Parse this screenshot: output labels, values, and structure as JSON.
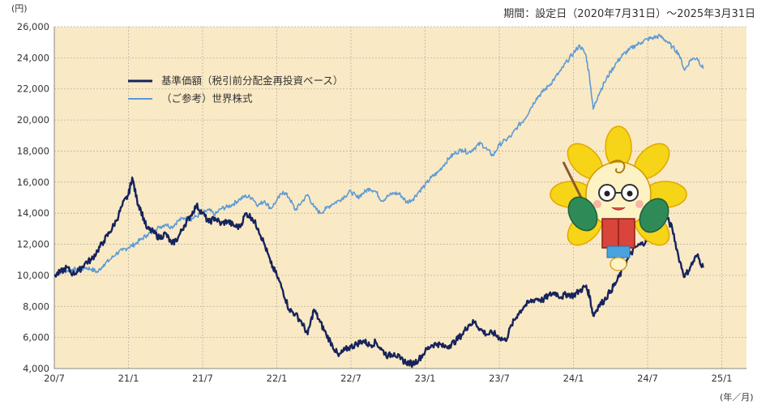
{
  "period_label": "期間：設定日（2020年7月31日）～2025年3月31日",
  "chart_data": {
    "type": "line",
    "y_unit": "(円)",
    "x_unit": "(年／月)",
    "ylim": [
      4000,
      26000
    ],
    "y_ticks": [
      "4,000",
      "6,000",
      "8,000",
      "10,000",
      "12,000",
      "14,000",
      "16,000",
      "18,000",
      "20,000",
      "22,000",
      "24,000",
      "26,000"
    ],
    "x_ticks": [
      "20/7",
      "21/1",
      "21/7",
      "22/1",
      "22/7",
      "23/1",
      "23/7",
      "24/1",
      "24/7",
      "25/1"
    ],
    "x_range_months": 56,
    "grid": true,
    "legend_position": "top-left",
    "series": [
      {
        "name": "基準価額（税引前分配金再投資ベース）",
        "color": "#16245c",
        "points": [
          [
            0,
            10000
          ],
          [
            0.5,
            10200
          ],
          [
            1,
            10500
          ],
          [
            1.5,
            10100
          ],
          [
            2,
            10300
          ],
          [
            2.5,
            10800
          ],
          [
            3,
            11000
          ],
          [
            3.5,
            11600
          ],
          [
            4,
            12200
          ],
          [
            4.5,
            12800
          ],
          [
            5,
            13500
          ],
          [
            5.5,
            14500
          ],
          [
            6,
            15200
          ],
          [
            6.3,
            16300
          ],
          [
            6.7,
            14800
          ],
          [
            7,
            14200
          ],
          [
            7.5,
            13000
          ],
          [
            8,
            12800
          ],
          [
            8.5,
            12400
          ],
          [
            9,
            12700
          ],
          [
            9.5,
            12000
          ],
          [
            10,
            12400
          ],
          [
            10.5,
            13200
          ],
          [
            11,
            13800
          ],
          [
            11.5,
            14500
          ],
          [
            12,
            14000
          ],
          [
            12.5,
            13400
          ],
          [
            13,
            13700
          ],
          [
            13.5,
            13300
          ],
          [
            14,
            13500
          ],
          [
            14.5,
            13200
          ],
          [
            15,
            13100
          ],
          [
            15.5,
            14000
          ],
          [
            16,
            13700
          ],
          [
            16.5,
            13000
          ],
          [
            17,
            12000
          ],
          [
            17.5,
            10800
          ],
          [
            18,
            10000
          ],
          [
            18.5,
            9000
          ],
          [
            19,
            7800
          ],
          [
            19.5,
            7500
          ],
          [
            20,
            7000
          ],
          [
            20.5,
            6200
          ],
          [
            21,
            7800
          ],
          [
            21.5,
            7000
          ],
          [
            22,
            6200
          ],
          [
            22.5,
            5500
          ],
          [
            23,
            4800
          ],
          [
            23.5,
            5200
          ],
          [
            24,
            5400
          ],
          [
            24.5,
            5600
          ],
          [
            25,
            5800
          ],
          [
            25.5,
            5500
          ],
          [
            26,
            5700
          ],
          [
            26.5,
            5200
          ],
          [
            27,
            4800
          ],
          [
            27.5,
            5000
          ],
          [
            28,
            4600
          ],
          [
            28.5,
            4400
          ],
          [
            29,
            4300
          ],
          [
            29.5,
            4600
          ],
          [
            30,
            5100
          ],
          [
            30.5,
            5500
          ],
          [
            31,
            5600
          ],
          [
            31.5,
            5400
          ],
          [
            32,
            5500
          ],
          [
            32.5,
            5800
          ],
          [
            33,
            6200
          ],
          [
            33.5,
            6800
          ],
          [
            34,
            7000
          ],
          [
            34.5,
            6500
          ],
          [
            35,
            6200
          ],
          [
            35.5,
            6300
          ],
          [
            36,
            6000
          ],
          [
            36.5,
            5800
          ],
          [
            37,
            6800
          ],
          [
            37.5,
            7500
          ],
          [
            38,
            8000
          ],
          [
            38.5,
            8300
          ],
          [
            39,
            8500
          ],
          [
            39.5,
            8400
          ],
          [
            40,
            8700
          ],
          [
            40.5,
            8900
          ],
          [
            41,
            8600
          ],
          [
            41.5,
            8800
          ],
          [
            42,
            8700
          ],
          [
            42.5,
            9000
          ],
          [
            43,
            9300
          ],
          [
            43.3,
            8700
          ],
          [
            43.6,
            7400
          ],
          [
            44,
            8000
          ],
          [
            44.5,
            8400
          ],
          [
            45,
            9000
          ],
          [
            45.5,
            9600
          ],
          [
            46,
            10400
          ],
          [
            46.5,
            11200
          ],
          [
            47,
            11800
          ],
          [
            47.5,
            12000
          ],
          [
            48,
            12300
          ],
          [
            48.5,
            12700
          ],
          [
            49,
            13300
          ],
          [
            49.5,
            13800
          ],
          [
            50,
            13000
          ],
          [
            50.5,
            11200
          ],
          [
            51,
            9900
          ],
          [
            51.5,
            10600
          ],
          [
            52,
            11300
          ],
          [
            52.5,
            10500
          ]
        ]
      },
      {
        "name": "（ご参考）世界株式",
        "color": "#5b9bd5",
        "points": [
          [
            0,
            10000
          ],
          [
            0.5,
            10200
          ],
          [
            1,
            10300
          ],
          [
            1.5,
            10400
          ],
          [
            2,
            10300
          ],
          [
            2.5,
            10500
          ],
          [
            3,
            10400
          ],
          [
            3.5,
            10200
          ],
          [
            4,
            10700
          ],
          [
            4.5,
            11000
          ],
          [
            5,
            11400
          ],
          [
            5.5,
            11600
          ],
          [
            6,
            11800
          ],
          [
            6.5,
            12000
          ],
          [
            7,
            12300
          ],
          [
            7.5,
            12600
          ],
          [
            8,
            12800
          ],
          [
            8.5,
            13100
          ],
          [
            9,
            13300
          ],
          [
            9.5,
            13100
          ],
          [
            10,
            13500
          ],
          [
            10.5,
            13700
          ],
          [
            11,
            13600
          ],
          [
            11.5,
            13800
          ],
          [
            12,
            14000
          ],
          [
            12.5,
            14200
          ],
          [
            13,
            13900
          ],
          [
            13.5,
            14300
          ],
          [
            14,
            14400
          ],
          [
            14.5,
            14600
          ],
          [
            15,
            14900
          ],
          [
            15.5,
            15100
          ],
          [
            16,
            15000
          ],
          [
            16.5,
            14500
          ],
          [
            17,
            14800
          ],
          [
            17.5,
            14300
          ],
          [
            18,
            14800
          ],
          [
            18.5,
            15400
          ],
          [
            19,
            15000
          ],
          [
            19.5,
            14200
          ],
          [
            20,
            14700
          ],
          [
            20.5,
            15200
          ],
          [
            21,
            14400
          ],
          [
            21.5,
            14000
          ],
          [
            22,
            14300
          ],
          [
            22.5,
            14600
          ],
          [
            23,
            14800
          ],
          [
            23.5,
            15100
          ],
          [
            24,
            15400
          ],
          [
            24.5,
            15000
          ],
          [
            25,
            15300
          ],
          [
            25.5,
            15600
          ],
          [
            26,
            15400
          ],
          [
            26.5,
            14800
          ],
          [
            27,
            15100
          ],
          [
            27.5,
            15300
          ],
          [
            28,
            15200
          ],
          [
            28.5,
            14700
          ],
          [
            29,
            14900
          ],
          [
            29.5,
            15400
          ],
          [
            30,
            15800
          ],
          [
            30.5,
            16300
          ],
          [
            31,
            16600
          ],
          [
            31.5,
            17100
          ],
          [
            32,
            17600
          ],
          [
            32.5,
            17900
          ],
          [
            33,
            18100
          ],
          [
            33.5,
            17900
          ],
          [
            34,
            18200
          ],
          [
            34.5,
            18500
          ],
          [
            35,
            18100
          ],
          [
            35.5,
            17700
          ],
          [
            36,
            18400
          ],
          [
            36.5,
            18700
          ],
          [
            37,
            19000
          ],
          [
            37.5,
            19600
          ],
          [
            38,
            20000
          ],
          [
            38.5,
            20700
          ],
          [
            39,
            21400
          ],
          [
            39.5,
            21800
          ],
          [
            40,
            22200
          ],
          [
            40.5,
            22700
          ],
          [
            41,
            23200
          ],
          [
            41.5,
            23800
          ],
          [
            42,
            24300
          ],
          [
            42.5,
            24800
          ],
          [
            43,
            24200
          ],
          [
            43.3,
            22800
          ],
          [
            43.6,
            20700
          ],
          [
            44,
            21600
          ],
          [
            44.5,
            22400
          ],
          [
            45,
            23100
          ],
          [
            45.5,
            23700
          ],
          [
            46,
            24200
          ],
          [
            46.5,
            24500
          ],
          [
            47,
            24800
          ],
          [
            47.5,
            25000
          ],
          [
            48,
            25200
          ],
          [
            48.5,
            25300
          ],
          [
            49,
            25400
          ],
          [
            49.5,
            25100
          ],
          [
            50,
            24700
          ],
          [
            50.5,
            24300
          ],
          [
            51,
            23200
          ],
          [
            51.5,
            23900
          ],
          [
            52,
            24000
          ],
          [
            52.5,
            23300
          ]
        ]
      }
    ]
  }
}
